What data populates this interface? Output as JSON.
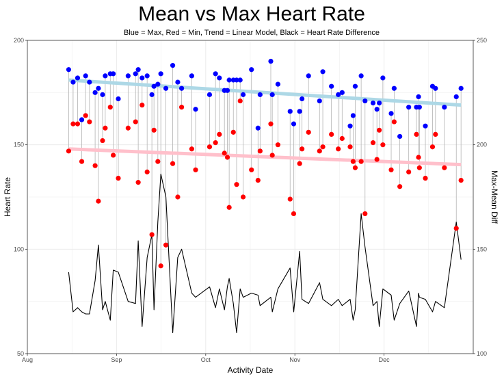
{
  "chart_data": {
    "type": "scatter",
    "title": "Mean vs Max Heart Rate",
    "subtitle": "Blue = Max, Red = Min, Trend = Linear Model, Black = Heart Rate Difference",
    "xlabel": "Activity Date",
    "ylabel": "Heart Rate",
    "y2label": "Max-Mean Diff",
    "x_ticks": [
      "Aug",
      "Sep",
      "Oct",
      "Nov",
      "Dec"
    ],
    "y_ticks": [
      "50",
      "100",
      "150",
      "200"
    ],
    "y2_ticks": [
      "100",
      "150",
      "200",
      "250"
    ],
    "xlim": [
      0,
      150
    ],
    "ylim": [
      50,
      200
    ],
    "y2lim": [
      100,
      250
    ],
    "grid": true,
    "colors": {
      "max": "#0000ff",
      "min": "#ff0000",
      "max_trend": "#add8e6",
      "min_trend": "#ffc0cb",
      "diff": "#000000",
      "segment": "#b3b3b3",
      "grid": "#ebebeb",
      "axis": "#333333"
    },
    "series": [
      {
        "name": "Max",
        "points": [
          [
            13.9,
            186
          ],
          [
            15.4,
            180
          ],
          [
            16.9,
            182
          ],
          [
            18.3,
            162
          ],
          [
            19.6,
            183
          ],
          [
            20.9,
            180
          ],
          [
            22.8,
            175
          ],
          [
            23.9,
            177
          ],
          [
            25.3,
            174
          ],
          [
            26.2,
            183
          ],
          [
            27.9,
            184
          ],
          [
            28.9,
            184
          ],
          [
            30.6,
            172
          ],
          [
            33.9,
            183
          ],
          [
            36.4,
            184
          ],
          [
            37.3,
            186
          ],
          [
            38.6,
            182
          ],
          [
            40.3,
            183
          ],
          [
            41.9,
            174
          ],
          [
            42.6,
            178
          ],
          [
            43.9,
            179
          ],
          [
            44.9,
            184
          ],
          [
            46.6,
            177
          ],
          [
            48.9,
            188
          ],
          [
            50.6,
            180
          ],
          [
            51.9,
            177
          ],
          [
            55.3,
            183
          ],
          [
            56.6,
            167
          ],
          [
            61.3,
            174
          ],
          [
            63.3,
            184
          ],
          [
            64.6,
            182
          ],
          [
            66.3,
            176
          ],
          [
            67.3,
            176
          ],
          [
            67.9,
            181
          ],
          [
            69.3,
            181
          ],
          [
            70.4,
            181
          ],
          [
            71.6,
            181
          ],
          [
            72.6,
            174
          ],
          [
            75.4,
            186
          ],
          [
            77.6,
            158
          ],
          [
            78.3,
            174
          ],
          [
            81.9,
            190
          ],
          [
            82.4,
            174
          ],
          [
            84.3,
            179
          ],
          [
            88.4,
            166
          ],
          [
            89.6,
            160
          ],
          [
            91.6,
            166
          ],
          [
            92.4,
            172
          ],
          [
            94.6,
            183
          ],
          [
            98.3,
            171
          ],
          [
            99.4,
            185
          ],
          [
            102.3,
            178
          ],
          [
            104.6,
            174
          ],
          [
            105.9,
            175
          ],
          [
            108.6,
            159
          ],
          [
            109.6,
            164
          ],
          [
            110.3,
            178
          ],
          [
            112.3,
            183
          ],
          [
            113.6,
            171
          ],
          [
            116.3,
            170
          ],
          [
            117.6,
            167
          ],
          [
            118.4,
            170
          ],
          [
            119.6,
            182
          ],
          [
            122.4,
            165
          ],
          [
            123.4,
            177
          ],
          [
            125.3,
            154
          ],
          [
            128.3,
            168
          ],
          [
            130.9,
            168
          ],
          [
            131.6,
            173
          ],
          [
            131.9,
            168
          ],
          [
            133.9,
            159
          ],
          [
            136.3,
            178
          ],
          [
            137.3,
            177
          ],
          [
            140.3,
            168
          ],
          [
            144.3,
            173
          ],
          [
            145.9,
            177
          ]
        ]
      },
      {
        "name": "Min",
        "points": [
          [
            13.9,
            147
          ],
          [
            15.4,
            160
          ],
          [
            16.9,
            160
          ],
          [
            18.3,
            142
          ],
          [
            19.6,
            164
          ],
          [
            20.9,
            161
          ],
          [
            22.8,
            140
          ],
          [
            23.9,
            123
          ],
          [
            25.3,
            152
          ],
          [
            26.2,
            158
          ],
          [
            27.9,
            168
          ],
          [
            28.9,
            145
          ],
          [
            30.6,
            134
          ],
          [
            33.9,
            158
          ],
          [
            36.4,
            161
          ],
          [
            37.3,
            132
          ],
          [
            38.6,
            169
          ],
          [
            40.3,
            137
          ],
          [
            41.9,
            107
          ],
          [
            42.6,
            157
          ],
          [
            43.9,
            142
          ],
          [
            44.9,
            92
          ],
          [
            46.6,
            102
          ],
          [
            48.9,
            141
          ],
          [
            50.6,
            125
          ],
          [
            51.9,
            168
          ],
          [
            55.3,
            148
          ],
          [
            56.6,
            138
          ],
          [
            61.3,
            149
          ],
          [
            63.3,
            151
          ],
          [
            64.6,
            155
          ],
          [
            66.3,
            146
          ],
          [
            67.3,
            144
          ],
          [
            67.9,
            120
          ],
          [
            69.3,
            156
          ],
          [
            70.4,
            131
          ],
          [
            71.6,
            171
          ],
          [
            72.6,
            125
          ],
          [
            75.4,
            138
          ],
          [
            77.6,
            133
          ],
          [
            78.3,
            147
          ],
          [
            81.9,
            160
          ],
          [
            82.4,
            145
          ],
          [
            84.3,
            150
          ],
          [
            88.4,
            124
          ],
          [
            89.6,
            117
          ],
          [
            91.6,
            141
          ],
          [
            92.4,
            148
          ],
          [
            94.6,
            156
          ],
          [
            98.3,
            147
          ],
          [
            99.4,
            149
          ],
          [
            102.3,
            155
          ],
          [
            104.6,
            148
          ],
          [
            105.9,
            153
          ],
          [
            108.6,
            149
          ],
          [
            109.6,
            142
          ],
          [
            110.3,
            139
          ],
          [
            112.3,
            142
          ],
          [
            113.6,
            117
          ],
          [
            116.3,
            151
          ],
          [
            117.6,
            143
          ],
          [
            118.4,
            157
          ],
          [
            119.6,
            150
          ],
          [
            122.4,
            138
          ],
          [
            123.4,
            161
          ],
          [
            125.3,
            130
          ],
          [
            128.3,
            137
          ],
          [
            130.9,
            155
          ],
          [
            131.6,
            144
          ],
          [
            131.9,
            139
          ],
          [
            133.9,
            134
          ],
          [
            136.3,
            149
          ],
          [
            137.3,
            155
          ],
          [
            140.3,
            139
          ],
          [
            144.3,
            110
          ],
          [
            145.9,
            133
          ]
        ]
      },
      {
        "name": "Max-Mean Diff",
        "axis": "right",
        "points": [
          [
            13.9,
            139
          ],
          [
            15.4,
            120
          ],
          [
            16.9,
            122
          ],
          [
            18.3,
            120
          ],
          [
            19.6,
            119
          ],
          [
            20.9,
            119
          ],
          [
            22.8,
            135
          ],
          [
            23.9,
            152
          ],
          [
            25.3,
            121
          ],
          [
            26.2,
            125
          ],
          [
            27.9,
            116
          ],
          [
            28.9,
            140
          ],
          [
            30.6,
            139
          ],
          [
            33.9,
            125
          ],
          [
            36.4,
            124
          ],
          [
            37.3,
            154
          ],
          [
            38.6,
            113
          ],
          [
            40.3,
            146
          ],
          [
            41.9,
            157
          ],
          [
            42.6,
            121
          ],
          [
            43.9,
            163
          ],
          [
            44.9,
            186
          ],
          [
            46.6,
            175
          ],
          [
            48.9,
            110
          ],
          [
            50.6,
            146
          ],
          [
            51.9,
            150
          ],
          [
            55.3,
            129
          ],
          [
            56.6,
            127
          ],
          [
            61.3,
            132
          ],
          [
            63.3,
            122
          ],
          [
            64.6,
            131
          ],
          [
            66.3,
            121
          ],
          [
            67.3,
            132
          ],
          [
            67.9,
            136
          ],
          [
            69.3,
            124
          ],
          [
            70.4,
            110
          ],
          [
            71.6,
            131
          ],
          [
            72.6,
            127
          ],
          [
            75.4,
            129
          ],
          [
            77.6,
            128
          ],
          [
            78.3,
            123
          ],
          [
            81.9,
            127
          ],
          [
            82.4,
            120
          ],
          [
            84.3,
            131
          ],
          [
            88.4,
            141
          ],
          [
            89.6,
            120
          ],
          [
            91.6,
            149
          ],
          [
            92.4,
            126
          ],
          [
            94.6,
            124
          ],
          [
            98.3,
            134
          ],
          [
            99.4,
            126
          ],
          [
            102.3,
            123
          ],
          [
            104.6,
            126
          ],
          [
            105.9,
            123
          ],
          [
            108.6,
            126
          ],
          [
            109.6,
            116
          ],
          [
            110.3,
            121
          ],
          [
            112.3,
            167
          ],
          [
            113.6,
            151
          ],
          [
            116.3,
            123
          ],
          [
            117.6,
            125
          ],
          [
            118.4,
            113
          ],
          [
            119.6,
            131
          ],
          [
            122.4,
            128
          ],
          [
            123.4,
            116
          ],
          [
            125.3,
            124
          ],
          [
            128.3,
            130
          ],
          [
            130.9,
            113
          ],
          [
            131.6,
            129
          ],
          [
            131.9,
            127
          ],
          [
            133.9,
            126
          ],
          [
            136.3,
            120
          ],
          [
            137.3,
            125
          ],
          [
            140.3,
            122
          ],
          [
            144.3,
            163
          ],
          [
            145.9,
            145
          ]
        ]
      },
      {
        "name": "Max Trend",
        "type": "line",
        "points": [
          [
            13.9,
            181
          ],
          [
            145.9,
            169
          ]
        ]
      },
      {
        "name": "Min Trend",
        "type": "line",
        "points": [
          [
            13.9,
            148
          ],
          [
            145.9,
            140.5
          ]
        ]
      }
    ]
  }
}
